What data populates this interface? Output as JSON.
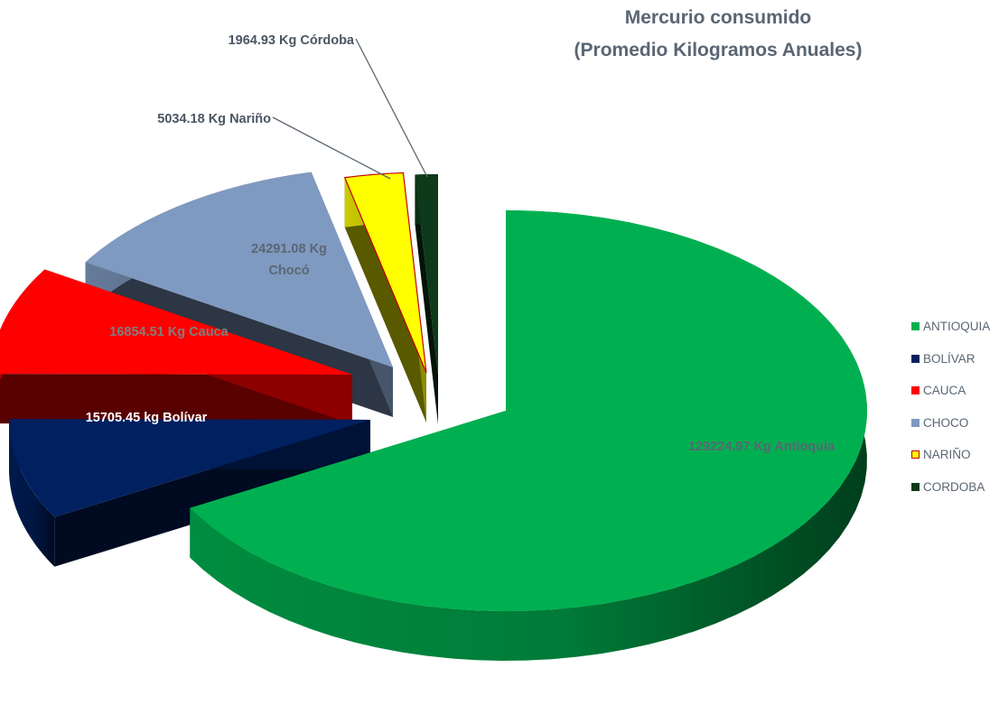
{
  "chart_data": {
    "type": "pie",
    "style": "3d-exploded",
    "title": [
      "Mercurio consumido",
      "(Promedio Kilogramos Anuales)"
    ],
    "legend_position": "right",
    "slices": [
      {
        "name": "ANTIOQUIA",
        "value": 129224.97,
        "label": "129224.97 Kg Antioquia",
        "color": "#00b050"
      },
      {
        "name": "BOLÍVAR",
        "value": 15705.45,
        "label": "15705.45 kg Bolívar",
        "color": "#002060"
      },
      {
        "name": "CAUCA",
        "value": 16854.51,
        "label": "16854.51 Kg Cauca",
        "color": "#ff0000"
      },
      {
        "name": "CHOCO",
        "value": 24291.08,
        "label": "24291.08 Kg Chocó",
        "color": "#7f9ac1"
      },
      {
        "name": "NARIÑO",
        "value": 5034.18,
        "label": "5034.18 Kg Nariño",
        "color": "#ffff00",
        "border": "#c00000"
      },
      {
        "name": "CORDOBA",
        "value": 1964.93,
        "label": "1964.93 Kg Córdoba",
        "color": "#0d3a1a"
      }
    ]
  }
}
